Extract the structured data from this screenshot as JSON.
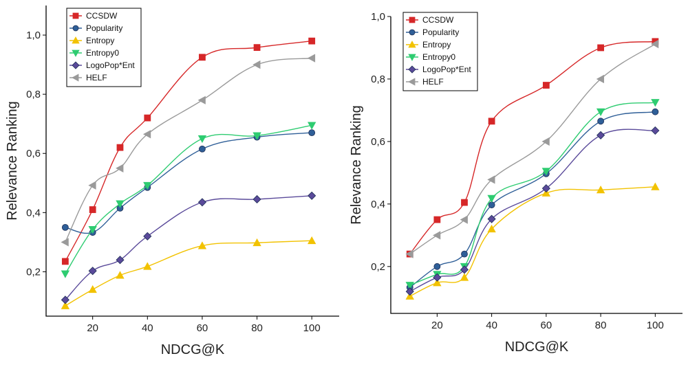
{
  "chart_data": [
    {
      "type": "line",
      "x": [
        10,
        20,
        30,
        40,
        60,
        80,
        100
      ],
      "xlabel": "NDCG@K",
      "ylabel": "Relevance Ranking",
      "xlim": [
        3,
        110
      ],
      "ylim": [
        0.05,
        1.1
      ],
      "xticks": [
        20,
        40,
        60,
        80,
        100
      ],
      "yticks": [
        0.2,
        0.4,
        0.6,
        0.8,
        1.0
      ],
      "ytick_labels": [
        "0,2",
        "0,4",
        "0,6",
        "0,8",
        "1,0"
      ],
      "legend_position": "top-left",
      "series": [
        {
          "name": "CCSDW",
          "color": "#d62728",
          "marker": "square",
          "values": [
            0.235,
            0.41,
            0.62,
            0.72,
            0.925,
            0.958,
            0.98
          ]
        },
        {
          "name": "Popularity",
          "color": "#2f5f98",
          "marker": "circle",
          "values": [
            0.35,
            0.333,
            0.415,
            0.485,
            0.615,
            0.655,
            0.67
          ]
        },
        {
          "name": "Entropy",
          "color": "#f2c200",
          "marker": "triangle-up",
          "values": [
            0.085,
            0.14,
            0.188,
            0.218,
            0.288,
            0.298,
            0.305
          ]
        },
        {
          "name": "Entropy0",
          "color": "#2ecc71",
          "marker": "triangle-down",
          "values": [
            0.193,
            0.343,
            0.43,
            0.492,
            0.65,
            0.66,
            0.695
          ]
        },
        {
          "name": "LogoPop*Ent",
          "color": "#5a4a9a",
          "marker": "diamond",
          "values": [
            0.105,
            0.203,
            0.24,
            0.32,
            0.435,
            0.445,
            0.457
          ]
        },
        {
          "name": "HELF",
          "color": "#9a9a9a",
          "marker": "triangle-left",
          "values": [
            0.3,
            0.492,
            0.55,
            0.665,
            0.78,
            0.9,
            0.922
          ]
        }
      ]
    },
    {
      "type": "line",
      "x": [
        10,
        20,
        30,
        40,
        60,
        80,
        100
      ],
      "xlabel": "NDCG@K",
      "ylabel": "Relevance Ranking",
      "xlim": [
        3,
        110
      ],
      "ylim": [
        0.05,
        1.0
      ],
      "xticks": [
        20,
        40,
        60,
        80,
        100
      ],
      "yticks": [
        0.2,
        0.4,
        0.6,
        0.8,
        1.0
      ],
      "ytick_labels": [
        "0,2",
        "0,4",
        "0,6",
        "0,8",
        "1,0"
      ],
      "legend_position": "top-left",
      "series": [
        {
          "name": "CCSDW",
          "color": "#d62728",
          "marker": "square",
          "values": [
            0.24,
            0.35,
            0.405,
            0.665,
            0.78,
            0.9,
            0.92
          ]
        },
        {
          "name": "Popularity",
          "color": "#2f5f98",
          "marker": "circle",
          "values": [
            0.133,
            0.2,
            0.24,
            0.397,
            0.497,
            0.665,
            0.695
          ]
        },
        {
          "name": "Entropy",
          "color": "#f2c200",
          "marker": "triangle-up",
          "values": [
            0.105,
            0.148,
            0.165,
            0.32,
            0.435,
            0.445,
            0.455
          ]
        },
        {
          "name": "Entropy0",
          "color": "#2ecc71",
          "marker": "triangle-down",
          "values": [
            0.14,
            0.175,
            0.2,
            0.418,
            0.505,
            0.695,
            0.725
          ]
        },
        {
          "name": "LogoPop*Ent",
          "color": "#5a4a9a",
          "marker": "diamond",
          "values": [
            0.12,
            0.165,
            0.19,
            0.352,
            0.45,
            0.62,
            0.635
          ]
        },
        {
          "name": "HELF",
          "color": "#9a9a9a",
          "marker": "triangle-left",
          "values": [
            0.24,
            0.3,
            0.35,
            0.478,
            0.6,
            0.8,
            0.912
          ]
        }
      ]
    }
  ]
}
